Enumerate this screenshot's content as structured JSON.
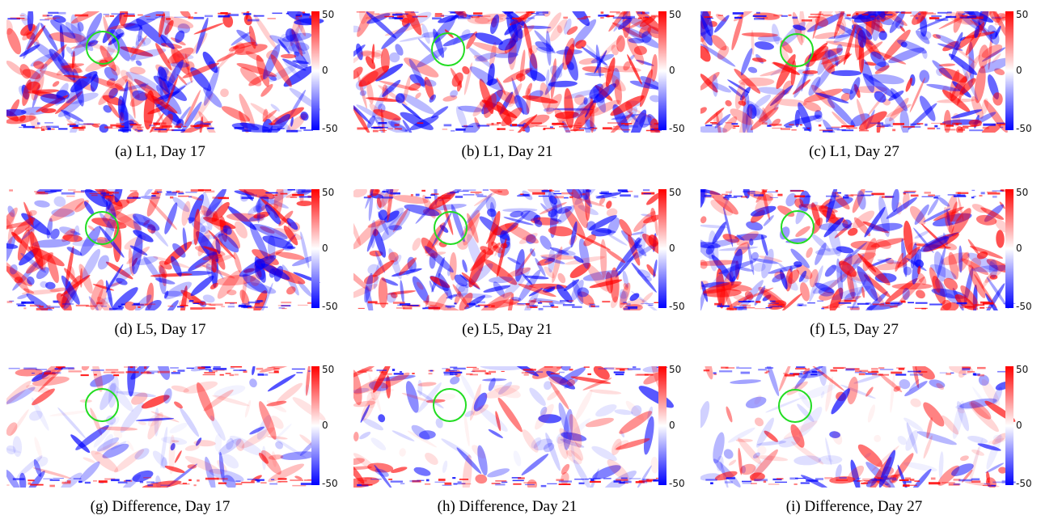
{
  "panels": [
    {
      "caption": "(a) L1, Day 17",
      "cb": {
        "max": "50",
        "mid": "0",
        "min": "-50"
      }
    },
    {
      "caption": "(b) L1, Day 21",
      "cb": {
        "max": "50",
        "mid": "0",
        "min": "-50"
      }
    },
    {
      "caption": "(c) L1, Day 27",
      "cb": {
        "max": "50",
        "mid": "0",
        "min": "-50"
      }
    },
    {
      "caption": "(d) L5, Day 17",
      "cb": {
        "max": "50",
        "mid": "0",
        "min": "-50"
      }
    },
    {
      "caption": "(e) L5, Day 21",
      "cb": {
        "max": "50",
        "mid": "0",
        "min": "-50"
      }
    },
    {
      "caption": "(f) L5, Day 27",
      "cb": {
        "max": "50",
        "mid": "0",
        "min": "-50"
      }
    },
    {
      "caption": "(g) Difference, Day 17",
      "cb": {
        "max": "50",
        "mid": "0",
        "min": "-50"
      }
    },
    {
      "caption": "(h) Difference, Day 21",
      "cb": {
        "max": "50",
        "mid": "0",
        "min": "-50"
      }
    },
    {
      "caption": "(i) Difference, Day 27",
      "cb": {
        "max": "50",
        "mid": "0",
        "min": "-50"
      }
    }
  ],
  "colors": {
    "positive": "#ff0000",
    "zero": "#ffffff",
    "negative": "#0000ff",
    "marker": "#22dd22"
  },
  "colorbar": {
    "max": 50,
    "min": -50
  }
}
